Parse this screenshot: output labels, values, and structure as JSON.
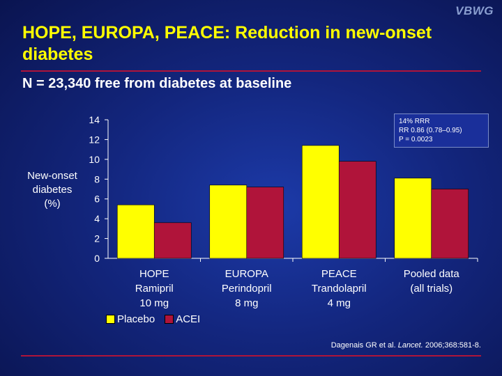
{
  "logo": "VBWG",
  "title": "HOPE, EUROPA, PEACE: Reduction in new-onset diabetes",
  "subtitle": "N = 23,340 free from diabetes at baseline",
  "stats_box": [
    "14% RRR",
    "RR 0.86 (0.78–0.95)",
    "P = 0.0023"
  ],
  "citation": {
    "authors": "Dagenais GR et al.",
    "journal": "Lancet.",
    "ref": "2006;368:581-8."
  },
  "chart_data": {
    "type": "bar",
    "ylabel": "New-onset\ndiabetes\n(%)",
    "ylim": [
      0,
      14
    ],
    "yticks": [
      0,
      2,
      4,
      6,
      8,
      10,
      12,
      14
    ],
    "categories": [
      [
        "HOPE",
        "Ramipril",
        "10 mg"
      ],
      [
        "EUROPA",
        "Perindopril",
        "8 mg"
      ],
      [
        "PEACE",
        "Trandolapril",
        "4 mg"
      ],
      [
        "Pooled data",
        "(all trials)"
      ]
    ],
    "series": [
      {
        "name": "Placebo",
        "color": "#ffff00",
        "values": [
          5.4,
          7.4,
          11.4,
          8.1
        ]
      },
      {
        "name": "ACEI",
        "color": "#b0143a",
        "values": [
          3.6,
          7.2,
          9.8,
          7.0
        ]
      }
    ],
    "legend_position": "bottom-left"
  }
}
